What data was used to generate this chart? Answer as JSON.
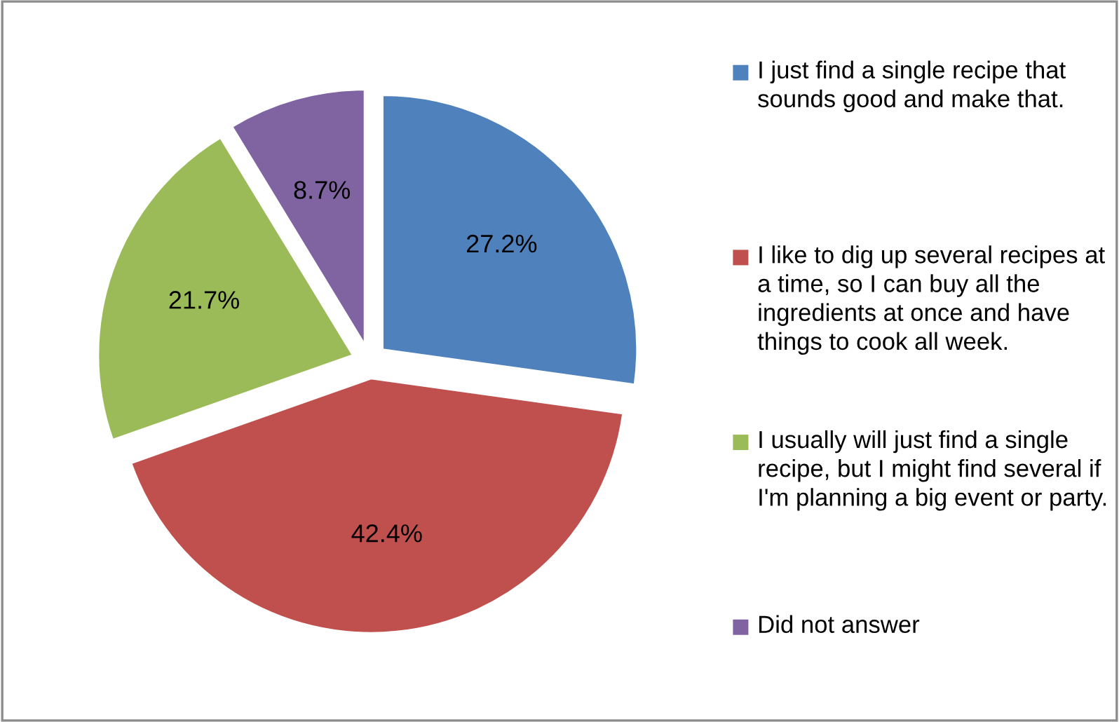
{
  "chart_data": {
    "type": "pie",
    "categories": [
      "I just find a single recipe that sounds good and make that.",
      "I like to dig up several recipes at a time, so I can buy all the ingredients at once and have things to cook all week.",
      "I usually will just find a single recipe, but I might find several if I'm planning a big event or party.",
      "Did not answer"
    ],
    "values": [
      27.2,
      42.4,
      21.7,
      8.7
    ],
    "value_labels": [
      "27.2%",
      "42.4%",
      "21.7%",
      "8.7%"
    ],
    "colors": [
      "#4f81bd",
      "#c0504d",
      "#9bbb59",
      "#8064a2"
    ],
    "legend": "right"
  }
}
